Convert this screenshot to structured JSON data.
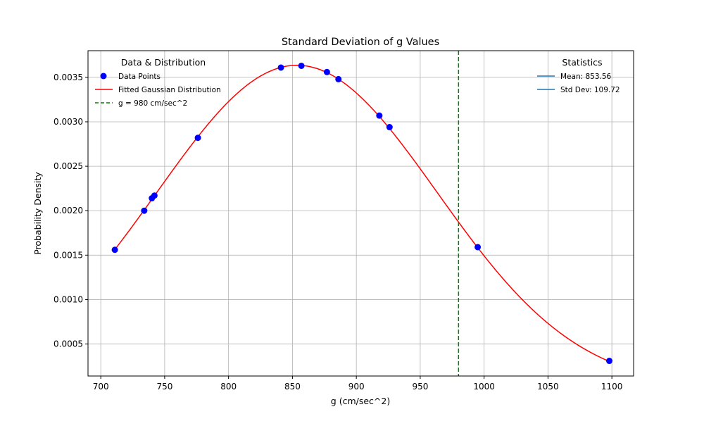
{
  "colors": {
    "points": "#0000ff",
    "fit_line": "#ff0000",
    "reference_line": "#008000",
    "stats_line": "#1f77b4",
    "grid": "#b0b0b0"
  },
  "chart_data": {
    "type": "scatter",
    "title": "Standard Deviation of g Values",
    "xlabel": "g (cm/sec^2)",
    "ylabel": "Probability Density",
    "xlim": [
      690,
      1117
    ],
    "ylim": [
      0.00014,
      0.0038
    ],
    "xticks": [
      700,
      750,
      800,
      850,
      900,
      950,
      1000,
      1050,
      1100
    ],
    "xtick_labels": [
      "700",
      "750",
      "800",
      "850",
      "900",
      "950",
      "1000",
      "1050",
      "1100"
    ],
    "yticks": [
      0.0005,
      0.001,
      0.0015,
      0.002,
      0.0025,
      0.003,
      0.0035
    ],
    "ytick_labels": [
      "0.0005",
      "0.0010",
      "0.0015",
      "0.0020",
      "0.0025",
      "0.0030",
      "0.0035"
    ],
    "grid": true,
    "series": [
      {
        "name": "Data Points",
        "kind": "scatter",
        "color": "#0000ff",
        "x": [
          711,
          734,
          740,
          742,
          776,
          841,
          857,
          877,
          886,
          918,
          926,
          995,
          1098
        ],
        "y": [
          0.00156,
          0.002,
          0.00214,
          0.00217,
          0.00282,
          0.00361,
          0.00363,
          0.00356,
          0.00348,
          0.00307,
          0.00294,
          0.00159,
          0.00031
        ]
      },
      {
        "name": "Fitted Gaussian Distribution",
        "kind": "line",
        "color": "#ff0000",
        "function": "normal_pdf",
        "mean": 853.56,
        "std": 109.72,
        "x_range": [
          711,
          1098
        ]
      },
      {
        "name": "g = 980 cm/sec^2",
        "kind": "vline",
        "color": "#008000",
        "style": "dashed",
        "x": 980
      }
    ],
    "legends": [
      {
        "title": "Data & Distribution",
        "placement": "top-left",
        "entries": [
          "Data Points",
          "Fitted Gaussian Distribution",
          "g = 980 cm/sec^2"
        ]
      },
      {
        "title": "Statistics",
        "placement": "top-right",
        "entries": [
          "Mean: 853.56",
          "Std Dev: 109.72"
        ]
      }
    ]
  }
}
